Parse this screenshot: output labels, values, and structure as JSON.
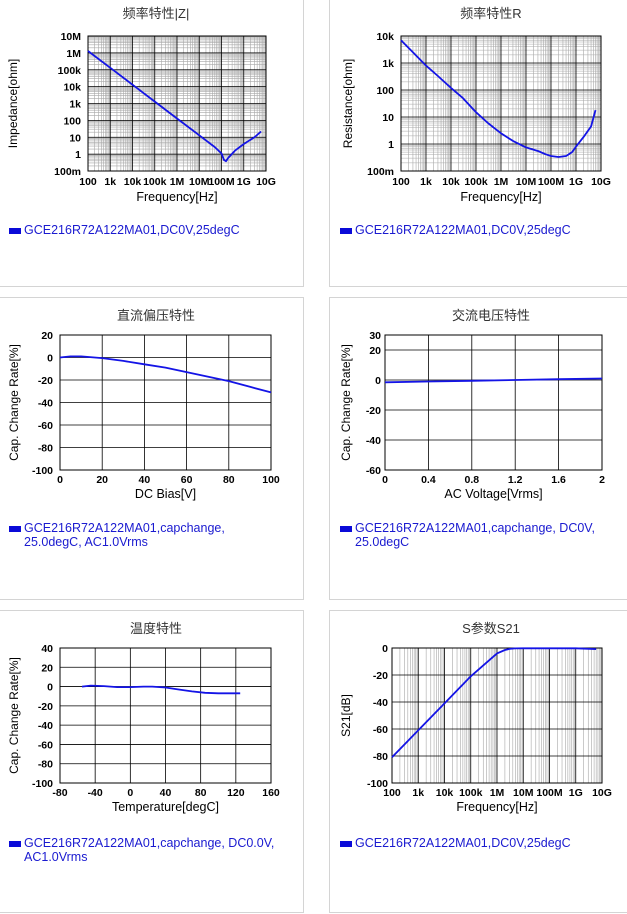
{
  "colors": {
    "series": "#1414e6",
    "legend": "#1a1ad0",
    "grid_major": "#000000",
    "grid_minor": "#aaaaaa"
  },
  "chart_data": [
    {
      "id": "impedance",
      "type": "line",
      "title": "频率特性|Z|",
      "xlabel": "Frequency[Hz]",
      "ylabel": "Impedance[ohm]",
      "xscale": "log",
      "yscale": "log",
      "xlim": [
        100,
        10000000000
      ],
      "ylim": [
        0.1,
        10000000
      ],
      "xticks": [
        {
          "v": 100,
          "l": "100"
        },
        {
          "v": 1000,
          "l": "1k"
        },
        {
          "v": 10000,
          "l": "10k"
        },
        {
          "v": 100000,
          "l": "100k"
        },
        {
          "v": 1000000,
          "l": "1M"
        },
        {
          "v": 10000000,
          "l": "10M"
        },
        {
          "v": 100000000,
          "l": "100M"
        },
        {
          "v": 1000000000,
          "l": "1G"
        },
        {
          "v": 10000000000,
          "l": "10G"
        }
      ],
      "yticks": [
        {
          "v": 0.1,
          "l": "100m"
        },
        {
          "v": 1,
          "l": "1"
        },
        {
          "v": 10,
          "l": "10"
        },
        {
          "v": 100,
          "l": "100"
        },
        {
          "v": 1000,
          "l": "1k"
        },
        {
          "v": 10000,
          "l": "10k"
        },
        {
          "v": 100000,
          "l": "100k"
        },
        {
          "v": 1000000,
          "l": "1M"
        },
        {
          "v": 10000000,
          "l": "10M"
        }
      ],
      "grid": true,
      "series": [
        {
          "x": [
            100,
            1000,
            10000,
            100000,
            1000000,
            10000000,
            50000000,
            100000000,
            130000000,
            160000000,
            200000000,
            400000000,
            1000000000,
            3000000000,
            6000000000
          ],
          "y": [
            1300000,
            130000,
            13000,
            1300,
            130,
            13,
            2.6,
            1.1,
            0.45,
            0.38,
            0.6,
            1.6,
            4,
            10,
            22
          ]
        }
      ],
      "legend": "GCE216R72A122MA01,DC0V,25degC"
    },
    {
      "id": "resistance",
      "type": "line",
      "title": "频率特性R",
      "xlabel": "Frequency[Hz]",
      "ylabel": "Resistance[ohm]",
      "xscale": "log",
      "yscale": "log",
      "xlim": [
        100,
        10000000000
      ],
      "ylim": [
        0.1,
        10000
      ],
      "xticks": [
        {
          "v": 100,
          "l": "100"
        },
        {
          "v": 1000,
          "l": "1k"
        },
        {
          "v": 10000,
          "l": "10k"
        },
        {
          "v": 100000,
          "l": "100k"
        },
        {
          "v": 1000000,
          "l": "1M"
        },
        {
          "v": 10000000,
          "l": "10M"
        },
        {
          "v": 100000000,
          "l": "100M"
        },
        {
          "v": 1000000000,
          "l": "1G"
        },
        {
          "v": 10000000000,
          "l": "10G"
        }
      ],
      "yticks": [
        {
          "v": 0.1,
          "l": "100m"
        },
        {
          "v": 1,
          "l": "1"
        },
        {
          "v": 10,
          "l": "10"
        },
        {
          "v": 100,
          "l": "100"
        },
        {
          "v": 1000,
          "l": "1k"
        },
        {
          "v": 10000,
          "l": "10k"
        }
      ],
      "grid": true,
      "series": [
        {
          "x": [
            100,
            300,
            1000,
            3000,
            10000,
            30000,
            100000,
            300000,
            1000000,
            3000000,
            10000000,
            30000000,
            60000000,
            100000000,
            200000000,
            400000000,
            700000000,
            1000000000,
            2000000000,
            4000000000,
            6000000000
          ],
          "y": [
            7000,
            2500,
            800,
            330,
            120,
            50,
            15,
            6,
            2.5,
            1.3,
            0.75,
            0.55,
            0.42,
            0.36,
            0.33,
            0.36,
            0.5,
            0.8,
            1.8,
            4.5,
            18
          ]
        }
      ],
      "legend": "GCE216R72A122MA01,DC0V,25degC"
    },
    {
      "id": "dcbias",
      "type": "line",
      "title": "直流偏压特性",
      "xlabel": "DC Bias[V]",
      "ylabel": "Cap. Change Rate[%]",
      "xscale": "linear",
      "yscale": "linear",
      "xlim": [
        0,
        100
      ],
      "ylim": [
        -100,
        20
      ],
      "xticks": [
        {
          "v": 0,
          "l": "0"
        },
        {
          "v": 20,
          "l": "20"
        },
        {
          "v": 40,
          "l": "40"
        },
        {
          "v": 60,
          "l": "60"
        },
        {
          "v": 80,
          "l": "80"
        },
        {
          "v": 100,
          "l": "100"
        }
      ],
      "yticks": [
        {
          "v": 20,
          "l": "20"
        },
        {
          "v": 0,
          "l": "0"
        },
        {
          "v": -20,
          "l": "-20"
        },
        {
          "v": -40,
          "l": "-40"
        },
        {
          "v": -60,
          "l": "-60"
        },
        {
          "v": -80,
          "l": "-80"
        },
        {
          "v": -100,
          "l": "-100"
        }
      ],
      "grid": true,
      "series": [
        {
          "x": [
            0,
            5,
            10,
            20,
            30,
            40,
            50,
            60,
            70,
            80,
            90,
            100
          ],
          "y": [
            0,
            1,
            1,
            -0.5,
            -3,
            -6,
            -9,
            -13,
            -17,
            -21,
            -26,
            -31
          ]
        }
      ],
      "legend": "GCE216R72A122MA01,capchange,\n25.0degC, AC1.0Vrms"
    },
    {
      "id": "acvoltage",
      "type": "line",
      "title": "交流电压特性",
      "xlabel": "AC Voltage[Vrms]",
      "ylabel": "Cap. Change Rate[%]",
      "xscale": "linear",
      "yscale": "linear",
      "xlim": [
        0,
        2
      ],
      "ylim": [
        -60,
        30
      ],
      "xticks": [
        {
          "v": 0,
          "l": "0"
        },
        {
          "v": 0.4,
          "l": "0.4"
        },
        {
          "v": 0.8,
          "l": "0.8"
        },
        {
          "v": 1.2,
          "l": "1.2"
        },
        {
          "v": 1.6,
          "l": "1.6"
        },
        {
          "v": 2,
          "l": "2"
        }
      ],
      "yticks": [
        {
          "v": 30,
          "l": "30"
        },
        {
          "v": 20,
          "l": "20"
        },
        {
          "v": 0,
          "l": "0"
        },
        {
          "v": -20,
          "l": "-20"
        },
        {
          "v": -40,
          "l": "-40"
        },
        {
          "v": -60,
          "l": "-60"
        }
      ],
      "grid": true,
      "series": [
        {
          "x": [
            0,
            0.4,
            0.8,
            1.2,
            1.6,
            2
          ],
          "y": [
            -1.5,
            -1,
            -0.5,
            0,
            0.5,
            1
          ]
        }
      ],
      "legend": "GCE216R72A122MA01,capchange, DC0V,\n25.0degC"
    },
    {
      "id": "temperature",
      "type": "line",
      "title": "温度特性",
      "xlabel": "Temperature[degC]",
      "ylabel": "Cap. Change Rate[%]",
      "xscale": "linear",
      "yscale": "linear",
      "xlim": [
        -80,
        160
      ],
      "ylim": [
        -100,
        40
      ],
      "xticks": [
        {
          "v": -80,
          "l": "-80"
        },
        {
          "v": -40,
          "l": "-40"
        },
        {
          "v": 0,
          "l": "0"
        },
        {
          "v": 40,
          "l": "40"
        },
        {
          "v": 80,
          "l": "80"
        },
        {
          "v": 120,
          "l": "120"
        },
        {
          "v": 160,
          "l": "160"
        }
      ],
      "yticks": [
        {
          "v": 40,
          "l": "40"
        },
        {
          "v": 20,
          "l": "20"
        },
        {
          "v": 0,
          "l": "0"
        },
        {
          "v": -20,
          "l": "-20"
        },
        {
          "v": -40,
          "l": "-40"
        },
        {
          "v": -60,
          "l": "-60"
        },
        {
          "v": -80,
          "l": "-80"
        },
        {
          "v": -100,
          "l": "-100"
        }
      ],
      "grid": true,
      "series": [
        {
          "x": [
            -55,
            -45,
            -30,
            -15,
            0,
            15,
            25,
            40,
            55,
            70,
            85,
            100,
            115,
            125
          ],
          "y": [
            0,
            1,
            0.5,
            -0.5,
            -0.5,
            0,
            0,
            -1,
            -3,
            -5,
            -6.5,
            -7,
            -7,
            -7
          ]
        }
      ],
      "legend": "GCE216R72A122MA01,capchange, DC0.0V,\nAC1.0Vrms"
    },
    {
      "id": "s21",
      "type": "line",
      "title": "S参数S21",
      "xlabel": "Frequency[Hz]",
      "ylabel": "S21[dB]",
      "xscale": "log",
      "yscale": "linear",
      "xlim": [
        100,
        10000000000
      ],
      "ylim": [
        -100,
        0
      ],
      "xticks": [
        {
          "v": 100,
          "l": "100"
        },
        {
          "v": 1000,
          "l": "1k"
        },
        {
          "v": 10000,
          "l": "10k"
        },
        {
          "v": 100000,
          "l": "100k"
        },
        {
          "v": 1000000,
          "l": "1M"
        },
        {
          "v": 10000000,
          "l": "10M"
        },
        {
          "v": 100000000,
          "l": "100M"
        },
        {
          "v": 1000000000,
          "l": "1G"
        },
        {
          "v": 10000000000,
          "l": "10G"
        }
      ],
      "yticks": [
        {
          "v": 0,
          "l": "0"
        },
        {
          "v": -20,
          "l": "-20"
        },
        {
          "v": -40,
          "l": "-40"
        },
        {
          "v": -60,
          "l": "-60"
        },
        {
          "v": -80,
          "l": "-80"
        },
        {
          "v": -100,
          "l": "-100"
        }
      ],
      "grid": true,
      "series": [
        {
          "x": [
            100,
            1000,
            10000,
            100000,
            1000000,
            2000000,
            3000000,
            5000000,
            10000000,
            100000000,
            1000000000,
            6000000000
          ],
          "y": [
            -81,
            -61,
            -41,
            -21,
            -4,
            -1.5,
            -0.7,
            -0.3,
            -0.2,
            -0.2,
            -0.2,
            -0.8
          ]
        }
      ],
      "legend": "GCE216R72A122MA01,DC0V,25degC"
    }
  ]
}
